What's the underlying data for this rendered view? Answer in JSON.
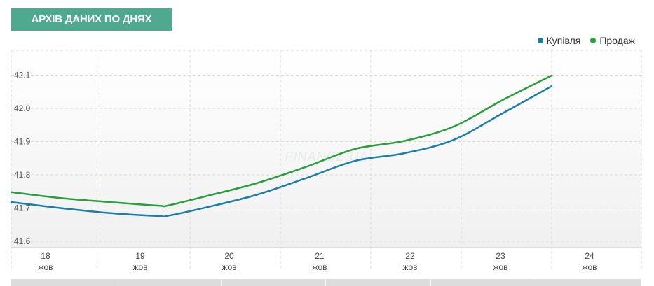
{
  "header": {
    "title": "АРХІВ ДАНИХ ПО ДНЯХ"
  },
  "watermark": "FINANCE.UA",
  "legend": [
    {
      "label": "Купівля",
      "color": "#1a7fa8"
    },
    {
      "label": "Продаж",
      "color": "#27a03b"
    }
  ],
  "chart_data": {
    "type": "line",
    "x": [
      18,
      18.5,
      19,
      19.5,
      19.6,
      20,
      20.5,
      21,
      21.5,
      22,
      22.5,
      23,
      23.5
    ],
    "x_ticks": [
      {
        "x": 18,
        "day": "18",
        "month": "жов"
      },
      {
        "x": 19,
        "day": "19",
        "month": "жов"
      },
      {
        "x": 20,
        "day": "20",
        "month": "жов"
      },
      {
        "x": 21,
        "day": "21",
        "month": "жов"
      },
      {
        "x": 22,
        "day": "22",
        "month": "жов"
      },
      {
        "x": 23,
        "day": "23",
        "month": "жов"
      },
      {
        "x": 24,
        "day": "24",
        "month": "жов"
      }
    ],
    "y_ticks": [
      "41.6",
      "41.7",
      "41.8",
      "41.9",
      "42.0",
      "42.1"
    ],
    "ylim": [
      41.6,
      42.15
    ],
    "xlim": [
      17.6,
      24.55
    ],
    "series": [
      {
        "name": "Купівля",
        "color": "#1a7fa8",
        "values": [
          41.718,
          41.7,
          41.685,
          41.676,
          41.677,
          41.703,
          41.74,
          41.79,
          41.842,
          41.865,
          41.905,
          41.985,
          42.067
        ]
      },
      {
        "name": "Продаж",
        "color": "#27a03b",
        "values": [
          41.748,
          41.73,
          41.718,
          41.707,
          41.708,
          41.737,
          41.775,
          41.824,
          41.878,
          41.902,
          41.945,
          42.025,
          42.099
        ]
      }
    ],
    "grid": true
  }
}
